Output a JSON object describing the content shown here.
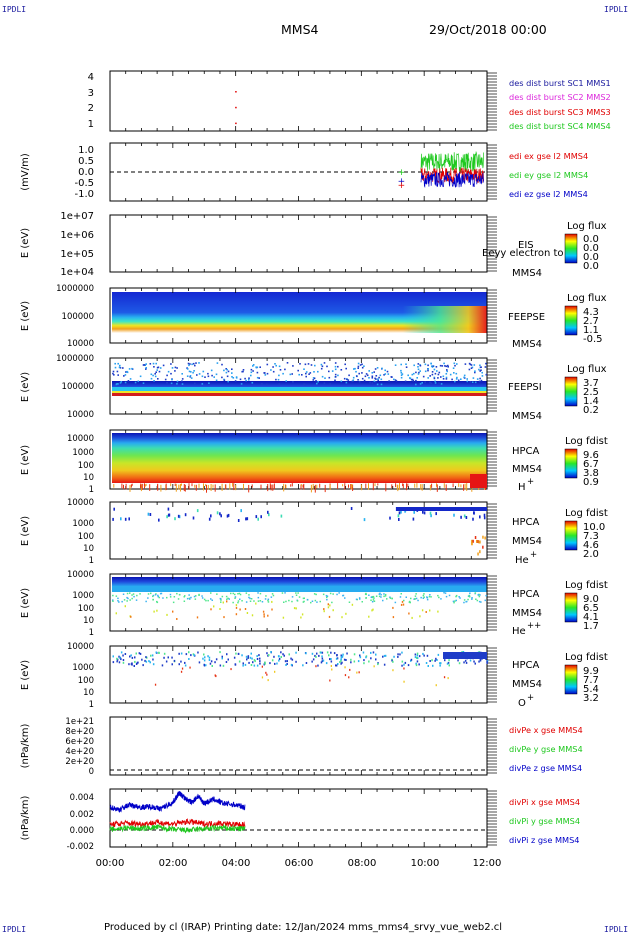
{
  "corner_label": "IPDLI",
  "header": {
    "spacecraft": "MMS4",
    "date": "29/Oct/2018 00:00"
  },
  "footer": "Produced by cl (IRAP)   Printing date: 12/Jan/2024   mms_mms4_srvy_vue_web2.cl",
  "colors": {
    "red": "#e00000",
    "green": "#1ec81e",
    "blue": "#0000c8",
    "magenta": "#dc28dc",
    "navy": "#1a1a9e"
  },
  "chart_data": {
    "type": "multi-panel time series / spectrogram",
    "x_ticks": [
      "00:00",
      "02:00",
      "04:00",
      "06:00",
      "08:00",
      "10:00",
      "12:00"
    ],
    "xlim_hours": [
      0,
      12
    ],
    "panels": [
      {
        "id": "des",
        "type": "line",
        "yticks": [
          "1",
          "2",
          "3",
          "4"
        ],
        "ylim": [
          0.5,
          4.3
        ],
        "legend": [
          {
            "text": "des dist burst SC1 MMS1",
            "color": "navy"
          },
          {
            "text": "des dist burst SC2 MMS2",
            "color": "magenta"
          },
          {
            "text": "des dist burst SC3 MMS3",
            "color": "red"
          },
          {
            "text": "des dist burst SC4 MMS4",
            "color": "green"
          }
        ],
        "points": [
          {
            "t": 4.0,
            "y": 3.0,
            "color": "red"
          },
          {
            "t": 4.0,
            "y": 2.0,
            "color": "red"
          },
          {
            "t": 4.0,
            "y": 1.0,
            "color": "red"
          }
        ]
      },
      {
        "id": "edi",
        "type": "line",
        "ylabel": "(mV/m)",
        "yticks": [
          "1.0",
          "0.5",
          "0.0",
          "-0.5",
          "-1.0"
        ],
        "ylim": [
          -1.3,
          1.3
        ],
        "legend": [
          {
            "text": "edi ex gse l2 MMS4",
            "color": "red"
          },
          {
            "text": "edi ey gse l2 MMS4",
            "color": "green"
          },
          {
            "text": "edi ez gse l2 MMS4",
            "color": "blue"
          }
        ],
        "zero_line": true,
        "active_span_hours": [
          9.9,
          11.9
        ]
      },
      {
        "id": "eis",
        "type": "heatmap",
        "ylabel": "E (eV)",
        "yticks": [
          "1e+07",
          "1e+06",
          "1e+05",
          "1e+04"
        ],
        "ylim": [
          10000.0,
          10000000.0
        ],
        "log": true,
        "labels": [
          "EIS",
          "MMS4"
        ],
        "overlay_text": "Eeyy electron to",
        "colorbar": {
          "title": "Log flux",
          "ticks": [
            "0.0",
            "0.0",
            "0.0",
            "0.0"
          ]
        },
        "empty": true
      },
      {
        "id": "feepse",
        "type": "heatmap",
        "ylabel": "E (eV)",
        "yticks": [
          "1000000",
          "100000",
          "10000"
        ],
        "ylim": [
          10000.0,
          1000000.0
        ],
        "log": true,
        "labels": [
          "FEEPSE",
          "MMS4"
        ],
        "colorbar": {
          "title": "Log flux",
          "ticks": [
            "4.3",
            "2.7",
            "1.1",
            "-0.5"
          ]
        }
      },
      {
        "id": "feepsi",
        "type": "heatmap",
        "ylabel": "E (eV)",
        "yticks": [
          "1000000",
          "100000",
          "10000"
        ],
        "ylim": [
          10000.0,
          1000000.0
        ],
        "log": true,
        "labels": [
          "FEEPSI",
          "MMS4"
        ],
        "colorbar": {
          "title": "Log flux",
          "ticks": [
            "3.7",
            "2.5",
            "1.4",
            "0.2"
          ]
        }
      },
      {
        "id": "hpca_h",
        "type": "heatmap",
        "ylabel": "E (eV)",
        "yticks": [
          "10000",
          "1000",
          "100",
          "10",
          "1"
        ],
        "ylim": [
          1,
          30000.0
        ],
        "log": true,
        "labels": [
          "HPCA",
          "MMS4"
        ],
        "species": "H",
        "charge": "+",
        "colorbar": {
          "title": "Log fdist",
          "ticks": [
            "9.6",
            "6.7",
            "3.8",
            "0.9"
          ]
        }
      },
      {
        "id": "hpca_he1",
        "type": "heatmap",
        "ylabel": "E (eV)",
        "yticks": [
          "10000",
          "1000",
          "100",
          "10",
          "1"
        ],
        "ylim": [
          1,
          30000.0
        ],
        "log": true,
        "labels": [
          "HPCA",
          "MMS4"
        ],
        "species": "He",
        "charge": "+",
        "colorbar": {
          "title": "Log fdist",
          "ticks": [
            "10.0",
            "7.3",
            "4.6",
            "2.0"
          ]
        }
      },
      {
        "id": "hpca_he2",
        "type": "heatmap",
        "ylabel": "E (eV)",
        "yticks": [
          "10000",
          "1000",
          "100",
          "10",
          "1"
        ],
        "ylim": [
          1,
          30000.0
        ],
        "log": true,
        "labels": [
          "HPCA",
          "MMS4"
        ],
        "species": "He",
        "charge": "++",
        "colorbar": {
          "title": "Log fdist",
          "ticks": [
            "9.0",
            "6.5",
            "4.1",
            "1.7"
          ]
        }
      },
      {
        "id": "hpca_o",
        "type": "heatmap",
        "ylabel": "E (eV)",
        "yticks": [
          "10000",
          "1000",
          "100",
          "10",
          "1"
        ],
        "ylim": [
          1,
          30000.0
        ],
        "log": true,
        "labels": [
          "HPCA",
          "MMS4"
        ],
        "species": "O",
        "charge": "+",
        "colorbar": {
          "title": "Log fdist",
          "ticks": [
            "9.9",
            "7.7",
            "5.4",
            "3.2"
          ]
        }
      },
      {
        "id": "divpe",
        "type": "line",
        "ylabel": "(nPa/km)",
        "yticks": [
          "1e+21",
          "8e+20",
          "6e+20",
          "4e+20",
          "2e+20",
          "0"
        ],
        "ylim": [
          -5e+19,
          1.05e+21
        ],
        "legend": [
          {
            "text": "divPe x gse MMS4",
            "color": "red"
          },
          {
            "text": "divPe y gse MMS4",
            "color": "green"
          },
          {
            "text": "divPe z gse MMS4",
            "color": "blue"
          }
        ],
        "zero_line": true
      },
      {
        "id": "divpi",
        "type": "line",
        "ylabel": "(nPa/km)",
        "yticks": [
          "0.004",
          "0.002",
          "0.000",
          "-0.002"
        ],
        "ylim": [
          -0.0025,
          0.0048
        ],
        "legend": [
          {
            "text": "divPi x gse MMS4",
            "color": "red"
          },
          {
            "text": "divPi y gse MMS4",
            "color": "green"
          },
          {
            "text": "divPi z gse MMS4",
            "color": "blue"
          }
        ],
        "zero_line": true,
        "series": [
          {
            "name": "divPi x gse MMS4",
            "color": "red",
            "t": [
              0.0,
              0.5,
              1.0,
              1.5,
              2.0,
              2.5,
              3.0,
              3.5,
              4.0,
              4.3
            ],
            "y": [
              0.0003,
              0.0005,
              0.0004,
              0.0006,
              0.0004,
              0.0007,
              0.0004,
              0.0005,
              0.0003,
              0.0003
            ]
          },
          {
            "name": "divPi y gse MMS4",
            "color": "green",
            "t": [
              0.0,
              0.5,
              1.0,
              1.5,
              2.0,
              2.5,
              3.0,
              3.5,
              4.0,
              4.3
            ],
            "y": [
              -0.0003,
              -0.0001,
              -0.0002,
              0.0,
              -0.0003,
              -0.0004,
              -0.0002,
              -0.0001,
              -0.0002,
              -0.0002
            ]
          },
          {
            "name": "divPi z gse MMS4",
            "color": "blue",
            "t": [
              0.0,
              0.3,
              0.6,
              1.0,
              1.3,
              1.6,
              2.0,
              2.2,
              2.4,
              2.6,
              2.8,
              3.0,
              3.3,
              3.6,
              4.0,
              4.3
            ],
            "y": [
              0.0025,
              0.0022,
              0.0028,
              0.0025,
              0.0026,
              0.0023,
              0.0031,
              0.0043,
              0.0036,
              0.0031,
              0.0039,
              0.003,
              0.0035,
              0.003,
              0.0028,
              0.0025
            ]
          }
        ]
      }
    ]
  }
}
